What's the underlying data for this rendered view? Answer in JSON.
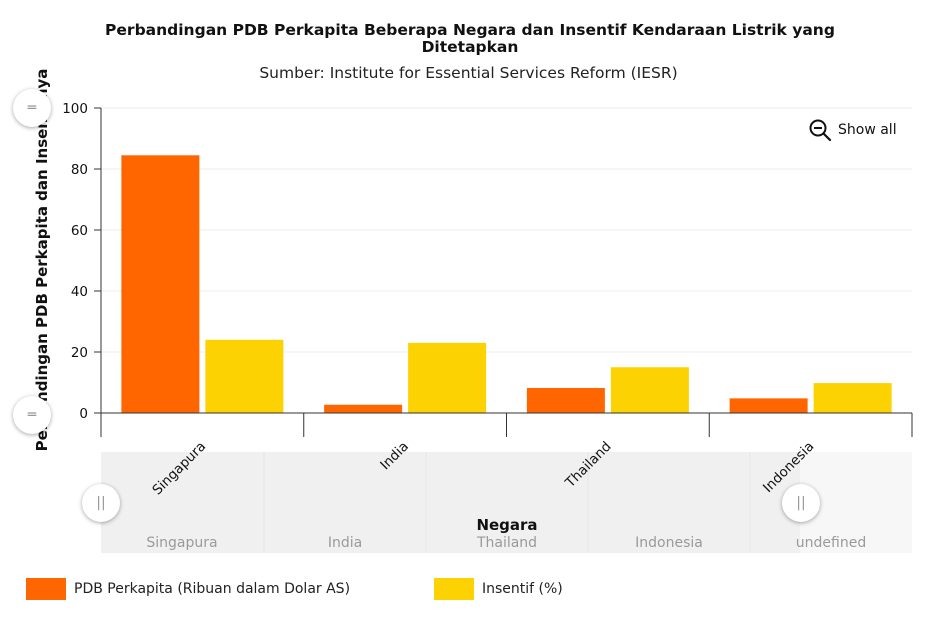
{
  "chart_data": {
    "type": "bar",
    "title": "Perbandingan PDB Perkapita Beberapa Negara dan Insentif Kendaraan Listrik yang Ditetapkan",
    "subtitle": "Sumber: Institute for Essential Services Reform (IESR)",
    "xlabel": "Negara",
    "ylabel": "Perbandingan PDB Perkapita dan Insentifnya",
    "categories": [
      "Singapura",
      "India",
      "Thailand",
      "Indonesia"
    ],
    "series": [
      {
        "name": "PDB Perkapita (Ribuan dalam Dolar AS)",
        "color": "#ff6600",
        "values": [
          84.5,
          2.7,
          8.2,
          4.8
        ]
      },
      {
        "name": "Insentif (%)",
        "color": "#fcd202",
        "values": [
          24,
          23,
          15,
          9.8
        ]
      }
    ],
    "ylim": [
      0,
      100
    ],
    "yticks": [
      0,
      20,
      40,
      60,
      80,
      100
    ],
    "grid": true,
    "legend_position": "bottom-left"
  },
  "controls": {
    "show_all_label": "Show all",
    "zoom_icon": "zoom-out-icon",
    "navigator_labels": [
      "Singapura",
      "India",
      "Thailand",
      "Indonesia",
      "undefined"
    ]
  }
}
